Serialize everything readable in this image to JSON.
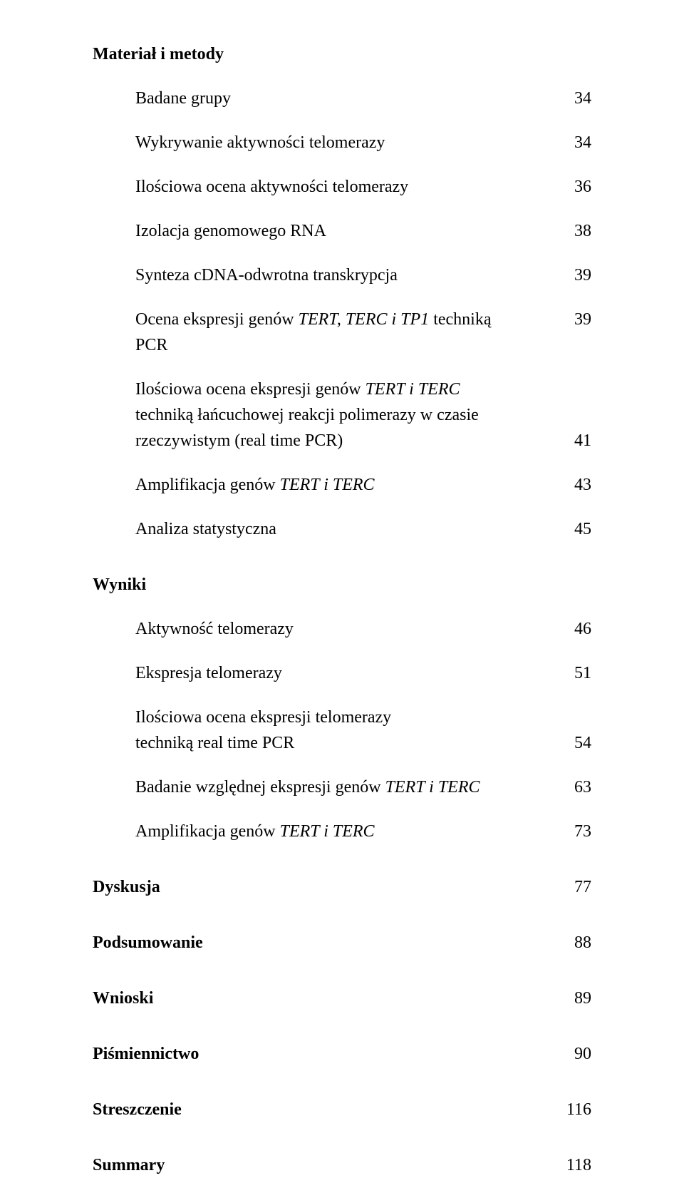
{
  "sections": {
    "s0": {
      "title": "Materiał i metody"
    },
    "s1": {
      "title": "Wyniki"
    },
    "s2": {
      "title": "Dyskusja",
      "page": "77"
    },
    "s3": {
      "title": "Podsumowanie",
      "page": "88"
    },
    "s4": {
      "title": "Wnioski",
      "page": "89"
    },
    "s5": {
      "title": "Piśmiennictwo",
      "page": "90"
    },
    "s6": {
      "title": "Streszczenie",
      "page": "116"
    },
    "s7": {
      "title": "Summary",
      "page": "118"
    }
  },
  "mm": {
    "e0": {
      "label": "Badane grupy",
      "page": "34"
    },
    "e1": {
      "label": "Wykrywanie aktywności telomerazy",
      "page": "34"
    },
    "e2": {
      "label": "Ilościowa ocena aktywności telomerazy",
      "page": "36"
    },
    "e3": {
      "label": "Izolacja genomowego RNA",
      "page": "38"
    },
    "e4": {
      "label": "Synteza cDNA-odwrotna transkrypcja",
      "page": "39"
    },
    "e5": {
      "pre": "Ocena ekspresji genów ",
      "it": "TERT, TERC i TP1",
      "post": " techniką PCR",
      "page": "39"
    },
    "e6": {
      "l1pre": "Ilościowa ocena  ekspresji genów ",
      "l1it": "TERT i TERC",
      "l2a": "techniką łańcuchowej reakcji polimerazy w czasie",
      "l2b": "rzeczywistym (real time PCR)",
      "page": "41"
    },
    "e7": {
      "pre": "Amplifikacja genów ",
      "it": "TERT i TERC",
      "page": "43"
    },
    "e8": {
      "label": "Analiza statystyczna",
      "page": "45"
    }
  },
  "wy": {
    "e0": {
      "label": "Aktywność telomerazy",
      "page": "46"
    },
    "e1": {
      "label": "Ekspresja telomerazy",
      "page": "51"
    },
    "e2": {
      "l1": "Ilościowa ocena ekspresji telomerazy",
      "l2": "techniką real time PCR",
      "page": "54"
    },
    "e3": {
      "pre": "Badanie względnej ekspresji genów ",
      "it": "TERT i TERC",
      "page": "63"
    },
    "e4": {
      "pre": "Amplifikacja genów ",
      "it": "TERT i TERC",
      "page": "73"
    }
  }
}
